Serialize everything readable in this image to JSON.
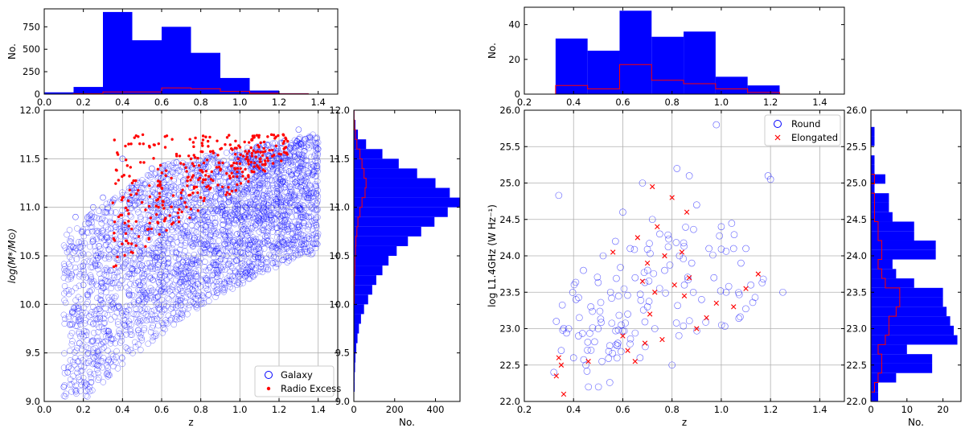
{
  "chart_data": [
    {
      "panel": "left-top-histogram",
      "type": "histogram",
      "xlim": [
        0.0,
        1.5
      ],
      "ylim": [
        0,
        950
      ],
      "ylabel": "No.",
      "xticks": [
        "0.0",
        "0.2",
        "0.4",
        "0.6",
        "0.8",
        "1.0",
        "1.2",
        "1.4"
      ],
      "yticks": [
        "0",
        "250",
        "500",
        "750"
      ],
      "bin_edges": [
        0.0,
        0.15,
        0.3,
        0.45,
        0.6,
        0.75,
        0.9,
        1.05,
        1.2,
        1.35
      ],
      "series": [
        {
          "name": "Galaxy",
          "style": "filled",
          "color": "#0000ff",
          "values": [
            20,
            80,
            915,
            600,
            750,
            460,
            180,
            40,
            10
          ]
        },
        {
          "name": "Radio Excess",
          "style": "step",
          "color": "#ff0000",
          "values": [
            0,
            5,
            25,
            25,
            70,
            60,
            30,
            10,
            3
          ]
        }
      ]
    },
    {
      "panel": "left-scatter",
      "type": "scatter",
      "xlabel": "z",
      "ylabel": "log(M*/M⊙)",
      "xlim": [
        0.0,
        1.5
      ],
      "ylim": [
        9.0,
        12.0
      ],
      "xticks": [
        "0.0",
        "0.2",
        "0.4",
        "0.6",
        "0.8",
        "1.0",
        "1.2",
        "1.4"
      ],
      "yticks": [
        "9.0",
        "9.5",
        "10.0",
        "10.5",
        "11.0",
        "11.5",
        "12.0"
      ],
      "legend": {
        "position": "lower-right",
        "entries": [
          "Galaxy",
          "Radio Excess"
        ]
      },
      "series": [
        {
          "name": "Galaxy",
          "marker": "open-circle",
          "color": "#0000ff",
          "count_approx": 3100,
          "x": [
            0.1,
            0.12,
            0.16,
            0.18,
            0.2,
            0.22,
            0.25,
            0.28,
            0.3,
            0.35,
            0.4,
            0.45,
            0.5,
            0.55,
            0.6,
            0.7,
            0.8,
            0.9,
            1.0,
            1.1,
            1.2,
            1.3,
            1.4
          ],
          "y": [
            9.15,
            9.3,
            10.9,
            9.6,
            10.2,
            10.1,
            11.0,
            10.6,
            11.1,
            10.0,
            11.5,
            11.2,
            10.4,
            11.4,
            10.9,
            11.0,
            11.3,
            11.2,
            11.45,
            11.4,
            11.5,
            11.8,
            11.6
          ]
        },
        {
          "name": "Radio Excess",
          "marker": "dot",
          "color": "#ff0000",
          "count_approx": 340,
          "x": [
            0.36,
            0.4,
            0.45,
            0.5,
            0.6,
            0.65,
            0.7,
            0.75,
            0.8,
            0.85,
            0.9,
            0.95,
            1.0,
            1.1,
            1.2
          ],
          "y": [
            10.85,
            11.1,
            11.25,
            11.05,
            11.2,
            11.3,
            11.15,
            11.5,
            11.1,
            11.2,
            11.6,
            11.3,
            11.45,
            11.4,
            11.55
          ]
        }
      ]
    },
    {
      "panel": "left-side-histogram",
      "type": "histogram",
      "orientation": "horizontal",
      "xlabel": "No.",
      "xlim": [
        0,
        520
      ],
      "ylim": [
        9.0,
        12.0
      ],
      "xticks": [
        "0",
        "200",
        "400"
      ],
      "yticks": [
        "9.0",
        "9.5",
        "10.0",
        "10.5",
        "11.0",
        "11.5",
        "12.0"
      ],
      "bin_edges": [
        9.0,
        9.1,
        9.2,
        9.3,
        9.4,
        9.5,
        9.6,
        9.7,
        9.8,
        9.9,
        10.0,
        10.1,
        10.2,
        10.3,
        10.4,
        10.5,
        10.6,
        10.7,
        10.8,
        10.9,
        11.0,
        11.1,
        11.2,
        11.3,
        11.4,
        11.5,
        11.6,
        11.7,
        11.8,
        11.9,
        12.0
      ],
      "series": [
        {
          "name": "Galaxy",
          "style": "filled",
          "color": "#0000ff",
          "values": [
            2,
            4,
            4,
            6,
            8,
            12,
            18,
            25,
            35,
            50,
            70,
            90,
            110,
            140,
            170,
            210,
            265,
            330,
            395,
            460,
            520,
            470,
            400,
            310,
            220,
            140,
            60,
            20,
            8,
            3
          ]
        },
        {
          "name": "Radio Excess",
          "style": "step",
          "color": "#ff0000",
          "values": [
            0,
            0,
            0,
            0,
            0,
            0,
            0,
            0,
            0,
            0,
            2,
            2,
            3,
            5,
            5,
            8,
            10,
            15,
            20,
            30,
            40,
            55,
            60,
            50,
            40,
            30,
            15,
            8,
            3,
            1
          ]
        }
      ]
    },
    {
      "panel": "right-top-histogram",
      "type": "histogram",
      "xlim": [
        0.2,
        1.5
      ],
      "ylim": [
        0,
        50
      ],
      "ylabel": "No.",
      "xticks": [
        "0.2",
        "0.4",
        "0.6",
        "0.8",
        "1.0",
        "1.2",
        "1.4"
      ],
      "yticks": [
        "0",
        "20",
        "40"
      ],
      "bin_edges": [
        0.327,
        0.457,
        0.587,
        0.717,
        0.847,
        0.977,
        1.107,
        1.237
      ],
      "series": [
        {
          "name": "Round",
          "style": "filled",
          "color": "#0000ff",
          "values": [
            32,
            25,
            48,
            33,
            36,
            10,
            5
          ]
        },
        {
          "name": "Elongated",
          "style": "step",
          "color": "#ff0000",
          "values": [
            5,
            3,
            17,
            8,
            6,
            3,
            1
          ]
        }
      ]
    },
    {
      "panel": "right-scatter",
      "type": "scatter",
      "xlabel": "z",
      "ylabel": "log L1.4GHz (W Hz⁻¹)",
      "xlim": [
        0.2,
        1.5
      ],
      "ylim": [
        22.0,
        26.0
      ],
      "xticks": [
        "0.2",
        "0.4",
        "0.6",
        "0.8",
        "1.0",
        "1.2",
        "1.4"
      ],
      "yticks": [
        "22.0",
        "22.5",
        "23.0",
        "23.5",
        "24.0",
        "24.5",
        "25.0",
        "25.5",
        "26.0"
      ],
      "legend": {
        "position": "upper-right",
        "entries": [
          "Round",
          "Elongated"
        ]
      },
      "series": [
        {
          "name": "Round",
          "marker": "open-circle",
          "color": "#0000ff",
          "x": [
            0.32,
            0.33,
            0.34,
            0.35,
            0.38,
            0.4,
            0.41,
            0.42,
            0.44,
            0.45,
            0.47,
            0.5,
            0.52,
            0.55,
            0.57,
            0.58,
            0.6,
            0.62,
            0.63,
            0.65,
            0.67,
            0.68,
            0.7,
            0.72,
            0.73,
            0.75,
            0.77,
            0.8,
            0.82,
            0.83,
            0.85,
            0.87,
            0.88,
            0.9,
            0.92,
            0.95,
            0.97,
            0.98,
            1.0,
            1.02,
            1.05,
            1.08,
            1.1,
            1.12,
            1.19,
            1.2,
            1.25
          ],
          "y": [
            22.4,
            23.1,
            24.83,
            22.7,
            23.0,
            22.6,
            23.4,
            22.9,
            23.8,
            22.5,
            23.3,
            23.0,
            24.0,
            23.5,
            24.2,
            22.8,
            24.6,
            23.2,
            24.1,
            23.7,
            22.6,
            25.0,
            23.3,
            24.5,
            23.0,
            24.3,
            23.8,
            22.5,
            25.2,
            24.0,
            23.6,
            25.1,
            23.9,
            24.7,
            23.4,
            24.1,
            23.7,
            25.8,
            24.4,
            23.5,
            24.1,
            23.9,
            24.1,
            23.6,
            25.1,
            25.05,
            23.5
          ]
        },
        {
          "name": "Elongated",
          "marker": "x",
          "color": "#ff0000",
          "x": [
            0.33,
            0.34,
            0.35,
            0.36,
            0.46,
            0.56,
            0.6,
            0.62,
            0.65,
            0.66,
            0.68,
            0.69,
            0.7,
            0.71,
            0.72,
            0.73,
            0.74,
            0.76,
            0.77,
            0.8,
            0.81,
            0.84,
            0.85,
            0.86,
            0.87,
            0.9,
            0.94,
            0.98,
            1.05,
            1.1,
            1.15
          ],
          "y": [
            22.35,
            22.6,
            22.5,
            22.1,
            22.55,
            24.05,
            22.9,
            22.7,
            22.55,
            24.25,
            23.65,
            22.8,
            23.9,
            23.2,
            24.95,
            23.5,
            24.4,
            22.85,
            24.0,
            24.8,
            23.6,
            24.05,
            23.45,
            24.6,
            23.7,
            23.0,
            23.15,
            23.35,
            23.3,
            23.55,
            23.75
          ]
        }
      ]
    },
    {
      "panel": "right-side-histogram",
      "type": "histogram",
      "orientation": "horizontal",
      "xlabel": "No.",
      "xlim": [
        0,
        25
      ],
      "ylim": [
        22.0,
        26.0
      ],
      "xticks": [
        "0",
        "10",
        "20"
      ],
      "yticks": [
        "22.0",
        "22.5",
        "23.0",
        "23.5",
        "24.0",
        "24.5",
        "25.0",
        "25.5",
        "26.0"
      ],
      "bin_edges": [
        22.0,
        22.13,
        22.26,
        22.39,
        22.52,
        22.65,
        22.78,
        22.91,
        23.04,
        23.17,
        23.3,
        23.43,
        23.56,
        23.69,
        23.82,
        23.95,
        24.08,
        24.21,
        24.34,
        24.47,
        24.6,
        24.73,
        24.86,
        24.99,
        25.12,
        25.25,
        25.38,
        25.51,
        25.64,
        25.77,
        25.9
      ],
      "series": [
        {
          "name": "Round",
          "style": "filled",
          "color": "#0000ff",
          "values": [
            2,
            2,
            7,
            17,
            17,
            10,
            24,
            23,
            22,
            21,
            20,
            20,
            12,
            7,
            6,
            18,
            18,
            12,
            12,
            6,
            5,
            5,
            1,
            4,
            1,
            1,
            0,
            1,
            1,
            0
          ]
        },
        {
          "name": "Elongated",
          "style": "step",
          "color": "#ff0000",
          "values": [
            0,
            1,
            2,
            3,
            3,
            2,
            4,
            5,
            5,
            7,
            8,
            8,
            4,
            3,
            2,
            3,
            3,
            2,
            2,
            1,
            1,
            1,
            0,
            1,
            0,
            0,
            0,
            0,
            0,
            0
          ]
        }
      ]
    }
  ]
}
